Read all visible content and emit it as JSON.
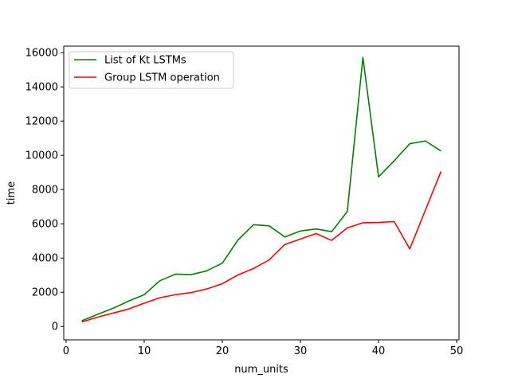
{
  "chart_data": {
    "type": "line",
    "title": "",
    "xlabel": "num_units",
    "ylabel": "time",
    "xlim": [
      -0.3,
      50.3
    ],
    "ylim": [
      -780,
      16380
    ],
    "xticks": [
      0,
      10,
      20,
      30,
      40,
      50
    ],
    "yticks": [
      0,
      2000,
      4000,
      6000,
      8000,
      10000,
      12000,
      14000,
      16000
    ],
    "grid": false,
    "legend_position": "top-left",
    "x": [
      2,
      4,
      6,
      8,
      10,
      12,
      14,
      16,
      18,
      20,
      22,
      24,
      26,
      28,
      30,
      32,
      34,
      36,
      38,
      40,
      42,
      44,
      46,
      48
    ],
    "series": [
      {
        "name": "List of Kt LSTMs",
        "color": "#008000",
        "values": [
          330,
          700,
          1060,
          1480,
          1860,
          2670,
          3060,
          3030,
          3250,
          3700,
          5050,
          5950,
          5880,
          5230,
          5580,
          5700,
          5540,
          6720,
          15720,
          8740,
          9680,
          10680,
          10840,
          10250
        ]
      },
      {
        "name": "Group LSTM operation",
        "color": "#ff0000",
        "values": [
          260,
          540,
          780,
          1020,
          1360,
          1680,
          1860,
          1980,
          2190,
          2500,
          3010,
          3390,
          3890,
          4790,
          5110,
          5430,
          5030,
          5760,
          6060,
          6080,
          6130,
          4530,
          6800,
          9060
        ]
      }
    ]
  }
}
